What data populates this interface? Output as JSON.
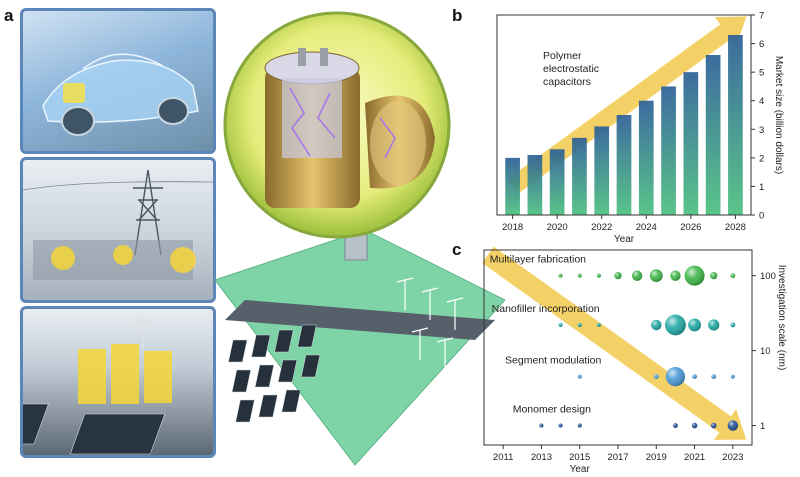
{
  "panel_labels": {
    "a": "a",
    "b": "b",
    "c": "c"
  },
  "chart_data": [
    {
      "type": "bar",
      "annotation": "Polymer electrostatic capacitors",
      "annotation_lines": [
        "Polymer",
        "electrostatic",
        "capacitors"
      ],
      "categories": [
        2018,
        2019,
        2020,
        2021,
        2022,
        2023,
        2024,
        2025,
        2026,
        2027,
        2028
      ],
      "values": [
        2.0,
        2.1,
        2.3,
        2.7,
        3.1,
        3.5,
        4.0,
        4.5,
        5.0,
        5.6,
        6.3
      ],
      "xticks": [
        "2018",
        "2020",
        "2022",
        "2024",
        "2026",
        "2028"
      ],
      "yticks": [
        "0",
        "1",
        "2",
        "3",
        "4",
        "5",
        "6",
        "7"
      ],
      "xlabel": "Year",
      "ylabel": "Market size (billion dollars)",
      "ylim": [
        0,
        7
      ],
      "colors": {
        "bar_top": "#2c5f97",
        "bar_bottom": "#4cc07f",
        "arrow": "#f2c94c"
      }
    },
    {
      "type": "scatter",
      "xticks": [
        "2011",
        "2013",
        "2015",
        "2017",
        "2019",
        "2021",
        "2023"
      ],
      "yticks": [
        "1",
        "10",
        "100"
      ],
      "xlabel": "Year",
      "ylabel": "Investigation scale (nm)",
      "xlim": [
        2010,
        2024
      ],
      "ylim": [
        0.55,
        220
      ],
      "yscale": "log",
      "series": [
        {
          "name": "Multilayer fabrication",
          "y": 100,
          "color": "#3fb548",
          "points": [
            [
              2014,
              0.5
            ],
            [
              2015,
              0.5
            ],
            [
              2016,
              0.5
            ],
            [
              2017,
              0.9
            ],
            [
              2018,
              1.3
            ],
            [
              2019,
              1.6
            ],
            [
              2020,
              1.3
            ],
            [
              2021,
              2.5
            ],
            [
              2022,
              0.9
            ],
            [
              2023,
              0.6
            ]
          ]
        },
        {
          "name": "Nanofiller incorporation",
          "y": 22,
          "color": "#22a8a4",
          "points": [
            [
              2014,
              0.5
            ],
            [
              2015,
              0.5
            ],
            [
              2016,
              0.5
            ],
            [
              2019,
              1.3
            ],
            [
              2020,
              2.6
            ],
            [
              2021,
              1.6
            ],
            [
              2022,
              1.4
            ],
            [
              2023,
              0.6
            ]
          ]
        },
        {
          "name": "Segment modulation",
          "y": 4.5,
          "color": "#4a9ad6",
          "points": [
            [
              2015,
              0.5
            ],
            [
              2019,
              0.6
            ],
            [
              2020,
              2.4
            ],
            [
              2021,
              0.6
            ],
            [
              2022,
              0.6
            ],
            [
              2023,
              0.5
            ]
          ]
        },
        {
          "name": "Monomer design",
          "y": 1,
          "color": "#1f4f95",
          "points": [
            [
              2013,
              0.5
            ],
            [
              2014,
              0.5
            ],
            [
              2015,
              0.5
            ],
            [
              2020,
              0.6
            ],
            [
              2021,
              0.7
            ],
            [
              2022,
              0.7
            ],
            [
              2023,
              1.3
            ]
          ]
        }
      ],
      "colors": {
        "arrow": "#f2c94c"
      }
    }
  ]
}
